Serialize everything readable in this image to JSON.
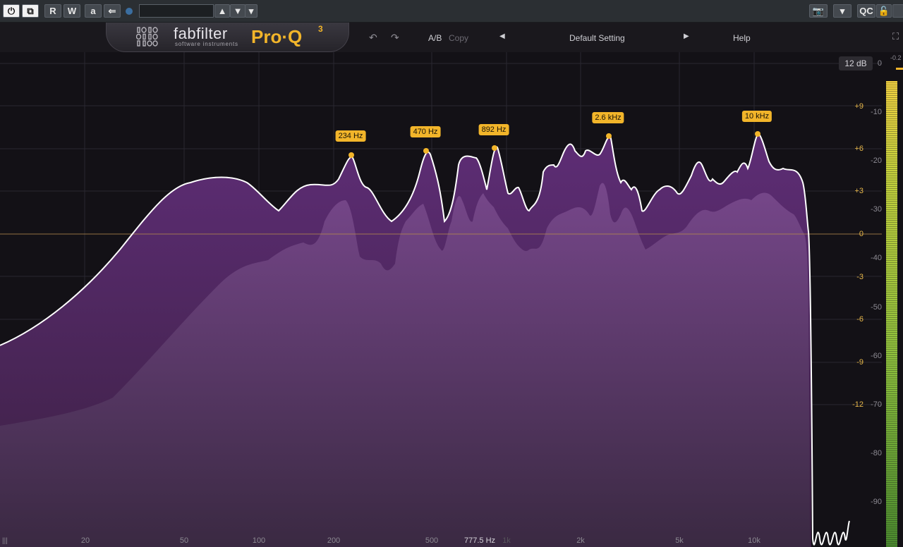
{
  "host": {
    "buttons": {
      "power": "⏻",
      "bypass": "⧉",
      "read": "R",
      "write": "W",
      "auto": "a",
      "back": "⇐",
      "dropdown": "▾",
      "updown": "⇅",
      "camera": "📷",
      "qc": "QC",
      "lock": "🔓"
    },
    "preset_field": ""
  },
  "header": {
    "brand": "fabfilter",
    "brand_sub": "software instruments",
    "product": "Pro·Q",
    "product_version": "3",
    "undo": "↶",
    "redo": "↷",
    "ab": "A/B",
    "copy": "Copy",
    "prev_preset": "◀",
    "preset": "Default Setting",
    "next_preset": "▶",
    "help": "Help",
    "fullscreen": "⛶"
  },
  "display": {
    "range_button": "12 dB",
    "meter_peak": "-0.2",
    "gain_scale": [
      "+9",
      "+6",
      "+3",
      "0",
      "-3",
      "-6",
      "-9",
      "-12"
    ],
    "db_scale": [
      "0",
      "-10",
      "-20",
      "-30",
      "-40",
      "-50",
      "-60",
      "-70",
      "-80",
      "-90"
    ],
    "freq_labels": [
      "20",
      "50",
      "100",
      "200",
      "500",
      "1k",
      "2k",
      "5k",
      "10k"
    ],
    "cursor_freq": "777.5 Hz",
    "nodes": [
      {
        "label": "234 Hz"
      },
      {
        "label": "470 Hz"
      },
      {
        "label": "892 Hz"
      },
      {
        "label": "2.6 kHz"
      },
      {
        "label": "10 kHz"
      }
    ]
  }
}
